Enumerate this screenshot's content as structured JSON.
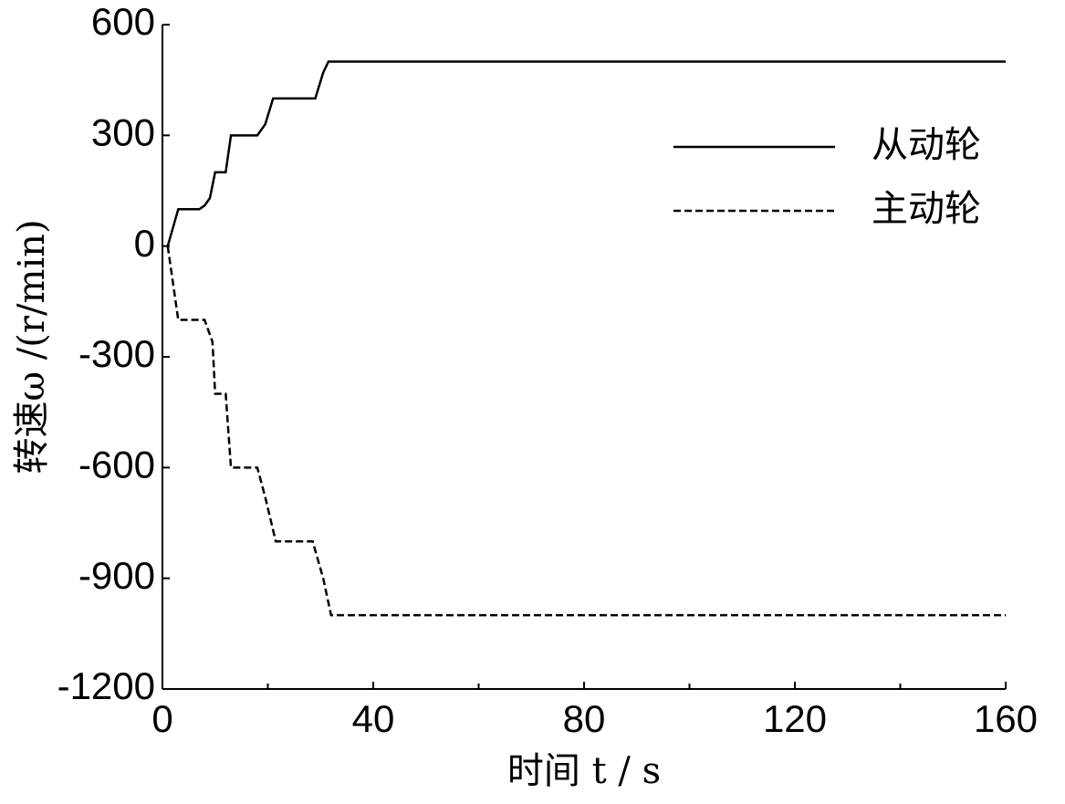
{
  "chart_data": {
    "type": "line",
    "xlabel": "时间 t / s",
    "ylabel": "转速ω /(r/min)",
    "xlim": [
      0,
      160
    ],
    "xticks": [
      0,
      40,
      80,
      120,
      160
    ],
    "xminorticks": [
      20,
      60,
      100,
      140
    ],
    "ylim": [
      -1200,
      600
    ],
    "yticks": [
      600,
      300,
      0,
      -300,
      -600,
      -900,
      -1200
    ],
    "legend_position": "upper right",
    "series": [
      {
        "name": "从动轮",
        "color": "#000000",
        "dash": "solid",
        "x": [
          1,
          3,
          7,
          8,
          9,
          10,
          12,
          13,
          18,
          19.5,
          21,
          24,
          29,
          30.5,
          31.5,
          160
        ],
        "values": [
          0,
          100,
          100,
          110,
          130,
          200,
          200,
          300,
          300,
          330,
          400,
          400,
          400,
          470,
          500,
          500
        ]
      },
      {
        "name": "主动轮",
        "color": "#000000",
        "dash": "dashed",
        "x": [
          1,
          3,
          7,
          8,
          9.5,
          10,
          12,
          13,
          18,
          19.5,
          21.5,
          28.5,
          30.5,
          32,
          160
        ],
        "values": [
          0,
          -200,
          -200,
          -200,
          -260,
          -400,
          -400,
          -600,
          -600,
          -680,
          -800,
          -800,
          -900,
          -1000,
          -1000
        ]
      }
    ]
  }
}
